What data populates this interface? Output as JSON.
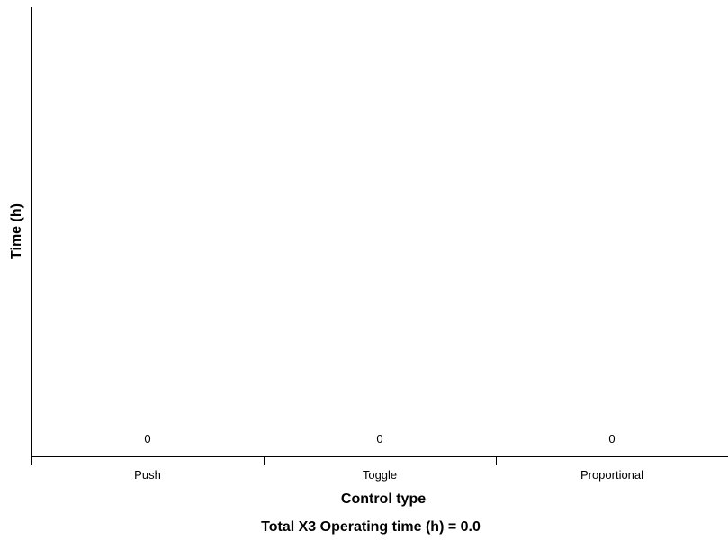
{
  "chart_data": {
    "type": "bar",
    "categories": [
      "Push",
      "Toggle",
      "Proportional"
    ],
    "values": [
      0,
      0,
      0
    ],
    "data_labels": [
      "0",
      "0",
      "0"
    ],
    "xlabel": "Control type",
    "ylabel": "Time (h)",
    "footer": "Total X3 Operating time (h) = 0.0",
    "grid": false,
    "colors": {
      "bar": "#4a90d9",
      "axis": "#000000",
      "text": "#000000"
    }
  }
}
